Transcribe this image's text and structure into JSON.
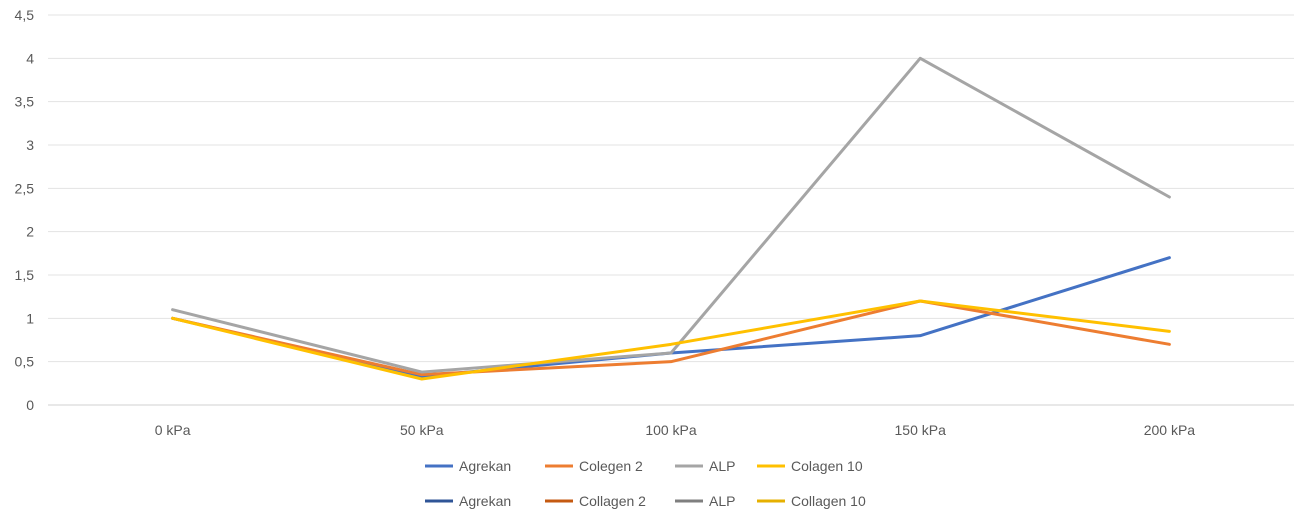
{
  "chart_data": {
    "type": "line",
    "categories": [
      "0 kPa",
      "50 kPa",
      "100 kPa",
      "150 kPa",
      "200 kPa"
    ],
    "ylim": [
      0,
      4.5
    ],
    "yticks": [
      "0",
      "0,5",
      "1",
      "1,5",
      "2",
      "2,5",
      "3",
      "3,5",
      "4",
      "4,5"
    ],
    "grid": true,
    "legend_position": "bottom",
    "series": [
      {
        "name": "Agrekan",
        "color": "#4472C4",
        "values": [
          1.0,
          0.33,
          0.6,
          0.8,
          1.7
        ]
      },
      {
        "name": "Colegen 2",
        "color": "#ED7D31",
        "values": [
          1.0,
          0.35,
          0.5,
          1.2,
          0.7
        ]
      },
      {
        "name": "ALP",
        "color": "#A5A5A5",
        "values": [
          1.1,
          0.38,
          0.6,
          4.0,
          2.4
        ]
      },
      {
        "name": "Colagen 10",
        "color": "#FFC000",
        "values": [
          1.0,
          0.3,
          0.7,
          1.2,
          0.85
        ]
      }
    ],
    "legend_rows": [
      [
        {
          "label": "Agrekan",
          "color": "#4472C4"
        },
        {
          "label": "Colegen 2",
          "color": "#ED7D31"
        },
        {
          "label": "ALP",
          "color": "#A5A5A5"
        },
        {
          "label": "Colagen 10",
          "color": "#FFC000"
        }
      ],
      [
        {
          "label": "Agrekan",
          "color": "#2F5597"
        },
        {
          "label": "Collagen 2",
          "color": "#C55A11"
        },
        {
          "label": "ALP",
          "color": "#7F7F7F"
        },
        {
          "label": "Collagen 10",
          "color": "#E6B000"
        }
      ]
    ]
  }
}
